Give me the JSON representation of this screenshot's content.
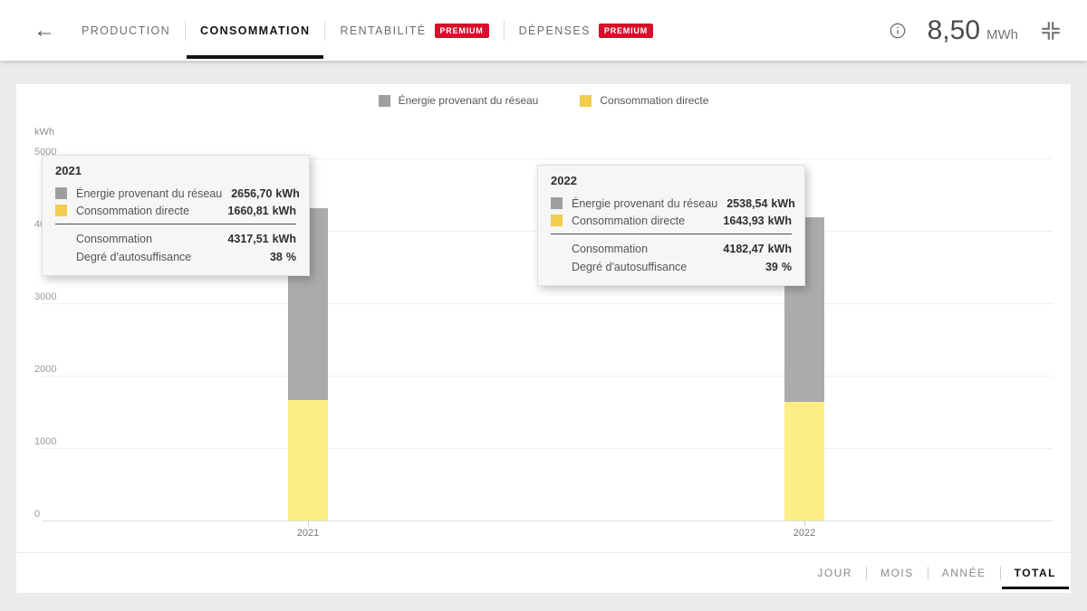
{
  "header": {
    "back_icon_glyph": "←",
    "tabs": [
      {
        "label": "PRODUCTION",
        "active": false,
        "premium": false
      },
      {
        "label": "CONSOMMATION",
        "active": true,
        "premium": false
      },
      {
        "label": "RENTABILITÉ",
        "active": false,
        "premium": true
      },
      {
        "label": "DÉPENSES",
        "active": false,
        "premium": true
      }
    ],
    "premium_label": "PREMIUM",
    "summary": {
      "value": "8,50",
      "unit": "MWh"
    }
  },
  "legend": {
    "items": [
      {
        "label": "Énergie provenant du réseau",
        "color": "#9e9e9e"
      },
      {
        "label": "Consommation directe",
        "color": "#f0cd4c"
      }
    ]
  },
  "chart_data": {
    "type": "bar",
    "stacked": true,
    "categories": [
      "2021",
      "2022"
    ],
    "series": [
      {
        "name": "Énergie provenant du réseau",
        "color": "#ababab",
        "values": [
          2656.7,
          2538.54
        ]
      },
      {
        "name": "Consommation directe",
        "color": "#fcee85",
        "values": [
          1660.81,
          1643.93
        ]
      }
    ],
    "ylabel": "kWh",
    "ylim": [
      0,
      5000
    ],
    "ytick_labels": [
      "0",
      "1000",
      "2000",
      "3000",
      "4000",
      "5000"
    ],
    "grid": true,
    "legend_position": "top-center",
    "totals": [
      4317.51,
      4182.47
    ],
    "self_sufficiency_pct": [
      38,
      39
    ]
  },
  "tooltips": [
    {
      "title": "2021",
      "rows": [
        {
          "swatch": "#9e9e9e",
          "label": "Énergie provenant du réseau",
          "value": "2656,70",
          "unit": "kWh"
        },
        {
          "swatch": "#f0cd4c",
          "label": "Consommation directe",
          "value": "1660,81",
          "unit": "kWh"
        }
      ],
      "summary": [
        {
          "label": "Consommation",
          "value": "4317,51",
          "unit": "kWh"
        },
        {
          "label": "Degré d'autosuffisance",
          "value": "38",
          "unit": "%"
        }
      ]
    },
    {
      "title": "2022",
      "rows": [
        {
          "swatch": "#9e9e9e",
          "label": "Énergie provenant du réseau",
          "value": "2538,54",
          "unit": "kWh"
        },
        {
          "swatch": "#f0cd4c",
          "label": "Consommation directe",
          "value": "1643,93",
          "unit": "kWh"
        }
      ],
      "summary": [
        {
          "label": "Consommation",
          "value": "4182,47",
          "unit": "kWh"
        },
        {
          "label": "Degré d'autosuffisance",
          "value": "39",
          "unit": "%"
        }
      ]
    }
  ],
  "footer": {
    "ranges": [
      {
        "label": "JOUR",
        "active": false
      },
      {
        "label": "MOIS",
        "active": false
      },
      {
        "label": "ANNÉE",
        "active": false
      },
      {
        "label": "TOTAL",
        "active": true
      }
    ]
  }
}
